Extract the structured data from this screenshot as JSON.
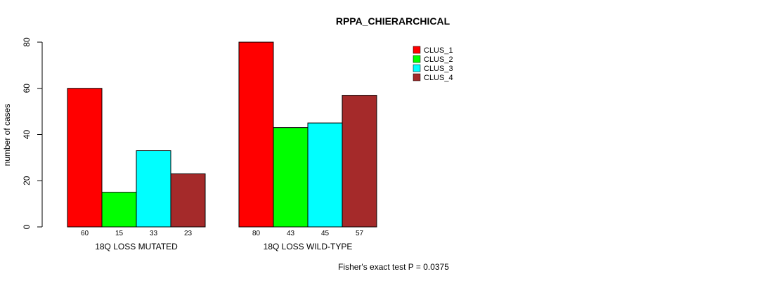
{
  "chart_data": {
    "type": "bar",
    "title": "RPPA_CHIERARCHICAL",
    "ylabel": "number of cases",
    "xlabel": "",
    "ylim": [
      0,
      80
    ],
    "yticks": [
      0,
      20,
      40,
      60,
      80
    ],
    "groups": [
      "18Q LOSS MUTATED",
      "18Q LOSS WILD-TYPE"
    ],
    "series": [
      {
        "name": "CLUS_1",
        "color": "#ff0000",
        "values": [
          60,
          80
        ]
      },
      {
        "name": "CLUS_2",
        "color": "#00ff00",
        "values": [
          15,
          43
        ]
      },
      {
        "name": "CLUS_3",
        "color": "#00ffff",
        "values": [
          33,
          45
        ]
      },
      {
        "name": "CLUS_4",
        "color": "#a52a2a",
        "values": [
          23,
          57
        ]
      }
    ],
    "legend_position": "top-right",
    "grid": false,
    "annotation": "Fisher's exact test P = 0.0375"
  }
}
